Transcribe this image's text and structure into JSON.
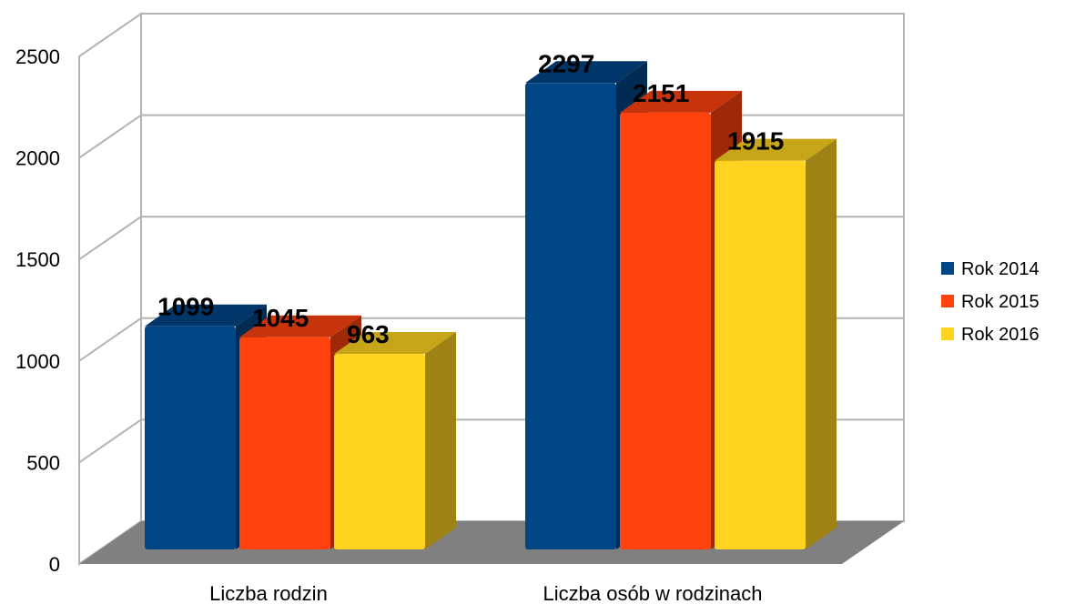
{
  "chart_data": {
    "type": "bar",
    "categories": [
      "Liczba rodzin",
      "Liczba osób w rodzinach"
    ],
    "series": [
      {
        "name": "Rok 2014",
        "values": [
          1099,
          2297
        ],
        "color": "#004586"
      },
      {
        "name": "Rok 2015",
        "values": [
          1045,
          2151
        ],
        "color": "#ff420e"
      },
      {
        "name": "Rok 2016",
        "values": [
          963,
          1915
        ],
        "color": "#ffd320"
      }
    ],
    "yticks": [
      "0",
      "500",
      "1000",
      "1500",
      "2000",
      "2500"
    ],
    "ylim": [
      0,
      2500
    ],
    "grid": true,
    "legend": "right",
    "three_d": true,
    "floor_color": "#808080"
  }
}
